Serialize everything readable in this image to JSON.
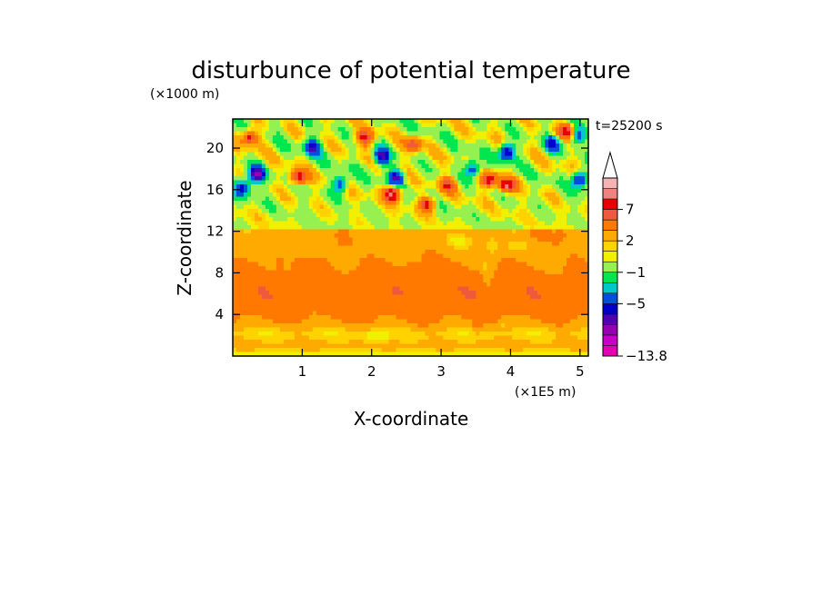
{
  "chart_data": {
    "type": "heatmap",
    "title": "disturbunce of potential temperature",
    "time_label": "t=25200 s",
    "xlabel": "X-coordinate",
    "ylabel": "Z-coordinate",
    "x_unit": "(×1E5 m)",
    "y_unit": "(×1000 m)",
    "xlim": [
      0,
      5.12
    ],
    "ylim": [
      0,
      22.8
    ],
    "x_ticks": [
      1,
      2,
      3,
      4,
      5
    ],
    "x_tick_labels": [
      "1",
      "2",
      "3",
      "4",
      "5"
    ],
    "y_ticks": [
      4,
      8,
      12,
      16,
      20
    ],
    "y_tick_labels": [
      "4",
      "8",
      "12",
      "16",
      "20"
    ],
    "colorbar": {
      "colors": [
        "#e600b4",
        "#c800c8",
        "#9600b4",
        "#5000b4",
        "#0000c8",
        "#0050dc",
        "#00c8c8",
        "#00e650",
        "#96f050",
        "#f0f000",
        "#ffd200",
        "#ffaa00",
        "#ff7800",
        "#f05a3c",
        "#e60000",
        "#f08282",
        "#f5b4b4"
      ],
      "labels": [
        {
          "text": "7",
          "band": 14
        },
        {
          "text": "2",
          "band": 11
        },
        {
          "text": "−1",
          "band": 8
        },
        {
          "text": "−5",
          "band": 5
        },
        {
          "text": "−13.8",
          "band": 0
        }
      ],
      "extend_top": true
    },
    "features": {
      "stratosphere_z_min": 13,
      "negative_blobs": [
        {
          "x": 0.35,
          "z": 17.5,
          "strength": -8
        },
        {
          "x": 0.15,
          "z": 16.2,
          "strength": -6
        },
        {
          "x": 1.15,
          "z": 20,
          "strength": -6
        },
        {
          "x": 1.55,
          "z": 16.6,
          "strength": -5
        },
        {
          "x": 2.15,
          "z": 19.2,
          "strength": -7
        },
        {
          "x": 2.35,
          "z": 17.2,
          "strength": -6
        },
        {
          "x": 3.45,
          "z": 18.0,
          "strength": -5
        },
        {
          "x": 3.95,
          "z": 19.6,
          "strength": -7
        },
        {
          "x": 4.6,
          "z": 20.4,
          "strength": -5
        },
        {
          "x": 5.0,
          "z": 17.0,
          "strength": -6
        },
        {
          "x": 4.95,
          "z": 21.2,
          "strength": -4
        }
      ],
      "positive_blobs": [
        {
          "x": 0.25,
          "z": 21,
          "strength": 6
        },
        {
          "x": 0.95,
          "z": 17.2,
          "strength": 6
        },
        {
          "x": 1.9,
          "z": 21,
          "strength": 6
        },
        {
          "x": 2.3,
          "z": 15.6,
          "strength": 8
        },
        {
          "x": 2.8,
          "z": 14.6,
          "strength": 6
        },
        {
          "x": 3.1,
          "z": 16.4,
          "strength": 5
        },
        {
          "x": 3.7,
          "z": 17.0,
          "strength": 6
        },
        {
          "x": 3.95,
          "z": 16.4,
          "strength": 7
        },
        {
          "x": 4.8,
          "z": 21.6,
          "strength": 6
        },
        {
          "x": 2.6,
          "z": 20.4,
          "strength": 5
        }
      ]
    }
  }
}
